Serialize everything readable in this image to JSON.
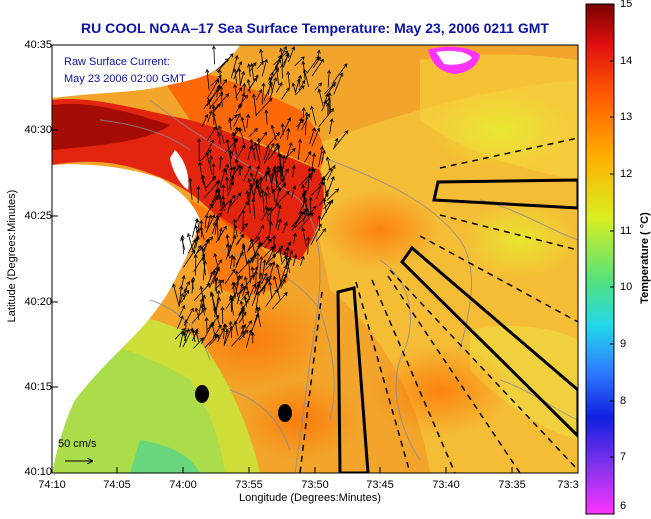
{
  "title": "RU COOL  NOAA–17  Sea Surface Temperature:  May 23, 2006 0211 GMT",
  "x_axis": {
    "label": "Longitude (Degrees:Minutes)",
    "ticks": [
      "74:10",
      "74:05",
      "74:00",
      "73:55",
      "73:50",
      "73:45",
      "73:40",
      "73:35",
      "73:3"
    ]
  },
  "y_axis": {
    "label": "Latitude (Degrees:Minutes)",
    "ticks": [
      "40:35",
      "40:30",
      "40:25",
      "40:20",
      "40:15",
      "40:10"
    ]
  },
  "colorbar": {
    "label": "Temperature ( °C)",
    "ticks": [
      "15",
      "14",
      "13",
      "12",
      "11",
      "10",
      "9",
      "8",
      "7",
      "6"
    ],
    "colors": [
      "#ff33ff",
      "#8833ee",
      "#1020e0",
      "#2f7cff",
      "#22d8e8",
      "#55e27a",
      "#d8ee20",
      "#ffb000",
      "#ff5a00",
      "#e01010",
      "#7a0000"
    ]
  },
  "legend": {
    "current_line1": "Raw Surface Current:",
    "current_line2": "May 23 2006 02:00 GMT",
    "scale": "50 cm/s"
  },
  "colors": {
    "title_blue": "#0b12a8",
    "land": "#ffffff",
    "warm_coast": "#c81414",
    "sea_main": "#f0a020"
  }
}
